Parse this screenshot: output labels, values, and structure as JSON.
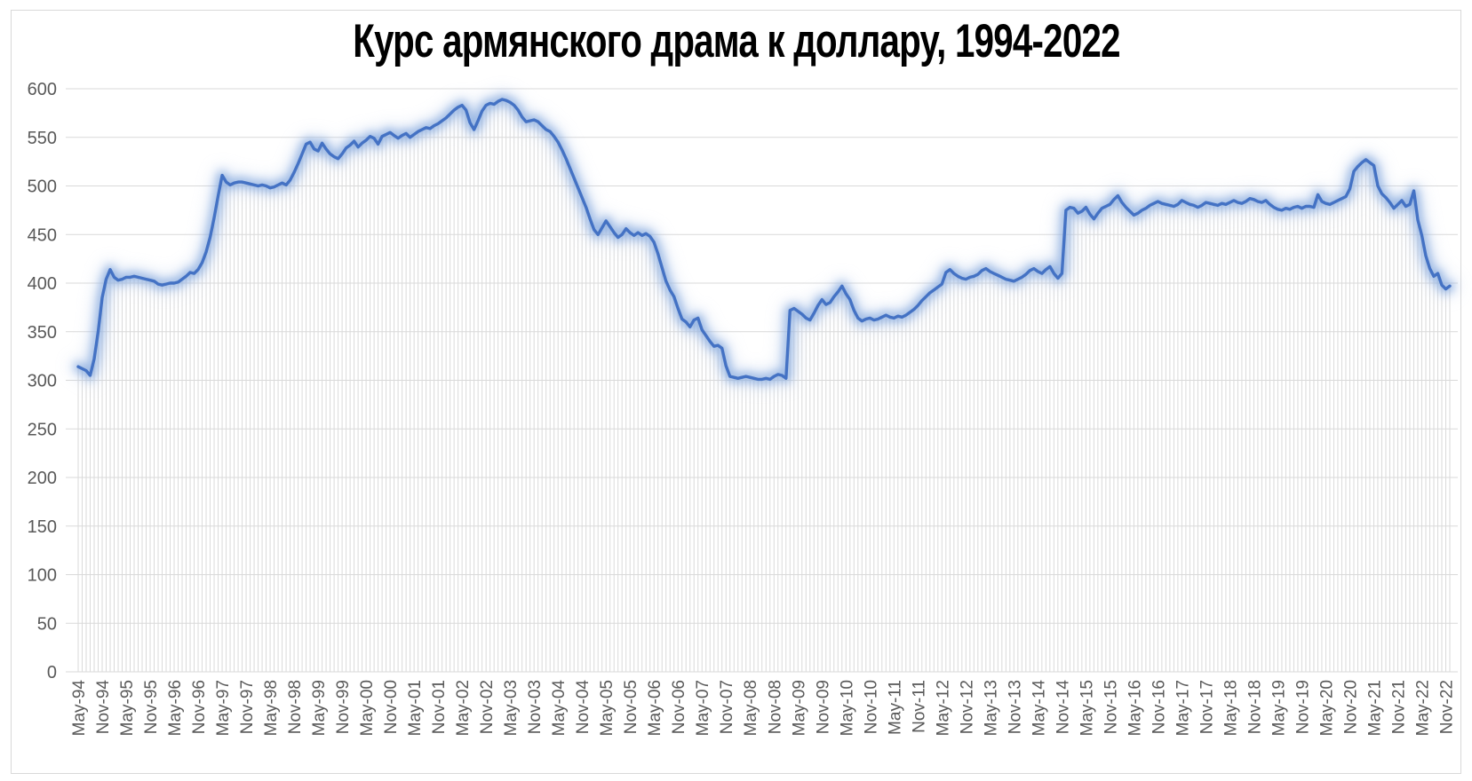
{
  "title": "Курс армянского драма к доллару, 1994-2022",
  "colors": {
    "line": "#4472c4",
    "glow_inner": "#85a9de",
    "glow_outer": "#b9cdec",
    "drop_line": "#dadada",
    "gridline": "#d9d9d9",
    "axis_text": "#595959",
    "title_text": "#000000",
    "frame_border": "#d9d9d9",
    "background": "#ffffff"
  },
  "chart_data": {
    "type": "line",
    "title": "Курс армянского драма к доллару, 1994-2022",
    "xlabel": "",
    "ylabel": "",
    "ylim": [
      0,
      600
    ],
    "grid": "horizontal",
    "legend": "none",
    "frequency": "monthly",
    "x_start": "May-1994",
    "x_end": "Dec-2022",
    "x_tick_every_months": 6,
    "y_ticks": [
      0,
      50,
      100,
      150,
      200,
      250,
      300,
      350,
      400,
      450,
      500,
      550,
      600
    ],
    "x_tick_labels": [
      "May-94",
      "Nov-94",
      "May-95",
      "Nov-95",
      "May-96",
      "Nov-96",
      "May-97",
      "Nov-97",
      "May-98",
      "Nov-98",
      "May-99",
      "Nov-99",
      "May-00",
      "Nov-00",
      "May-01",
      "Nov-01",
      "May-02",
      "Nov-02",
      "May-03",
      "Nov-03",
      "May-04",
      "Nov-04",
      "May-05",
      "Nov-05",
      "May-06",
      "Nov-06",
      "May-07",
      "Nov-07",
      "May-08",
      "Nov-08",
      "May-09",
      "Nov-09",
      "May-10",
      "Nov-10",
      "May-11",
      "Nov-11",
      "May-12",
      "Nov-12",
      "May-13",
      "Nov-13",
      "May-14",
      "Nov-14",
      "May-15",
      "Nov-15",
      "May-16",
      "Nov-16",
      "May-17",
      "Nov-17",
      "May-18",
      "Nov-18",
      "May-19",
      "Nov-19",
      "May-20",
      "Nov-20",
      "May-21",
      "Nov-21",
      "May-22",
      "Nov-22"
    ],
    "values": [
      314,
      312,
      310,
      305,
      322,
      350,
      385,
      404,
      414,
      406,
      403,
      404,
      406,
      406,
      407,
      406,
      405,
      404,
      403,
      402,
      399,
      398,
      399,
      400,
      400,
      401,
      404,
      407,
      411,
      410,
      414,
      421,
      432,
      447,
      467,
      490,
      511,
      504,
      501,
      503,
      504,
      504,
      503,
      502,
      501,
      500,
      501,
      500,
      498,
      499,
      501,
      503,
      501,
      506,
      514,
      523,
      533,
      543,
      545,
      538,
      536,
      544,
      538,
      533,
      530,
      528,
      533,
      539,
      542,
      546,
      540,
      544,
      547,
      551,
      549,
      543,
      551,
      553,
      555,
      552,
      549,
      552,
      554,
      550,
      553,
      556,
      558,
      560,
      559,
      562,
      564,
      567,
      570,
      574,
      578,
      581,
      583,
      578,
      565,
      558,
      567,
      577,
      583,
      585,
      584,
      587,
      589,
      588,
      586,
      583,
      578,
      571,
      566,
      567,
      568,
      566,
      562,
      558,
      556,
      551,
      545,
      537,
      528,
      518,
      508,
      498,
      488,
      478,
      466,
      455,
      450,
      457,
      464,
      458,
      452,
      447,
      450,
      456,
      452,
      449,
      452,
      449,
      451,
      448,
      442,
      430,
      416,
      402,
      393,
      386,
      374,
      363,
      360,
      355,
      362,
      364,
      352,
      346,
      340,
      335,
      336,
      333,
      315,
      304,
      303,
      302,
      303,
      304,
      303,
      302,
      301,
      301,
      302,
      301,
      304,
      306,
      305,
      302,
      372,
      374,
      371,
      368,
      364,
      362,
      369,
      377,
      383,
      378,
      380,
      386,
      391,
      397,
      389,
      383,
      372,
      364,
      361,
      363,
      364,
      362,
      363,
      365,
      367,
      365,
      364,
      366,
      365,
      367,
      370,
      373,
      377,
      382,
      386,
      390,
      393,
      396,
      399,
      411,
      414,
      410,
      407,
      405,
      404,
      406,
      407,
      409,
      413,
      415,
      412,
      410,
      408,
      406,
      404,
      403,
      402,
      404,
      406,
      409,
      413,
      415,
      412,
      410,
      414,
      417,
      410,
      405,
      410,
      475,
      478,
      477,
      472,
      474,
      478,
      471,
      466,
      472,
      477,
      479,
      481,
      486,
      490,
      483,
      478,
      474,
      470,
      472,
      475,
      477,
      480,
      482,
      484,
      482,
      481,
      480,
      479,
      481,
      485,
      483,
      481,
      480,
      478,
      480,
      483,
      482,
      481,
      480,
      482,
      481,
      483,
      485,
      483,
      482,
      484,
      487,
      486,
      484,
      483,
      485,
      481,
      478,
      476,
      475,
      477,
      476,
      478,
      479,
      477,
      479,
      479,
      478,
      491,
      484,
      482,
      481,
      483,
      485,
      487,
      489,
      497,
      515,
      520,
      524,
      527,
      524,
      521,
      500,
      492,
      488,
      483,
      477,
      481,
      485,
      479,
      481,
      495,
      465,
      449,
      428,
      415,
      407,
      410,
      398,
      394,
      397
    ]
  }
}
